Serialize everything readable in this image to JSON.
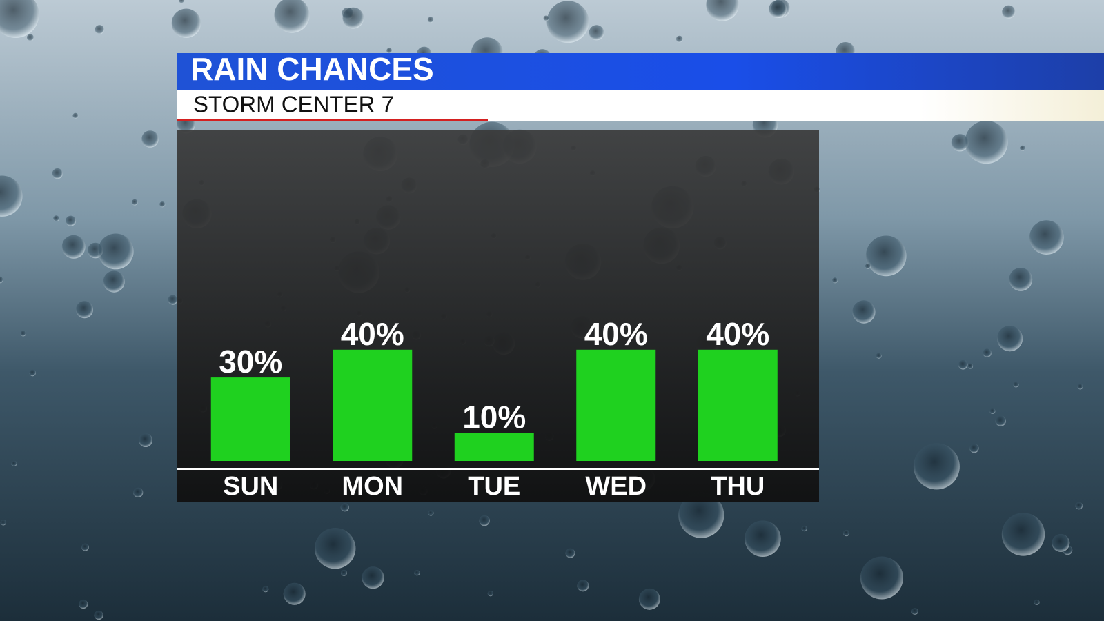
{
  "chart_data": {
    "type": "bar",
    "title": "RAIN CHANCES",
    "subtitle": "STORM CENTER 7",
    "categories": [
      "SUN",
      "MON",
      "TUE",
      "WED",
      "THU"
    ],
    "values": [
      30,
      40,
      10,
      40,
      40
    ],
    "value_labels": [
      "30%",
      "40%",
      "10%",
      "40%",
      "40%"
    ],
    "color": "#1fd11f"
  }
}
